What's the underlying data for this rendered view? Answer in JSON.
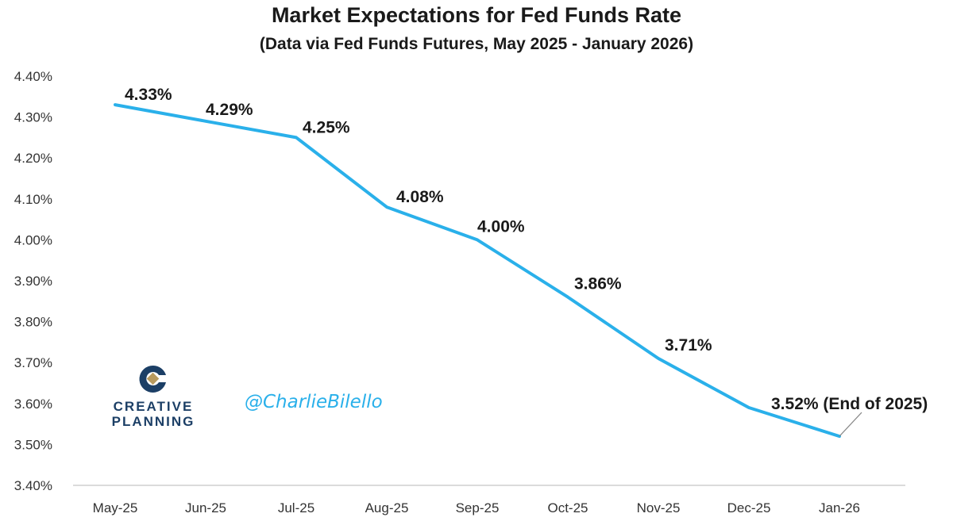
{
  "chart_data": {
    "type": "line",
    "title": "Market Expectations for Fed Funds Rate",
    "subtitle": "(Data via Fed Funds Futures, May 2025 - January 2026)",
    "xlabel": "",
    "ylabel": "",
    "categories": [
      "May-25",
      "Jun-25",
      "Jul-25",
      "Aug-25",
      "Sep-25",
      "Oct-25",
      "Nov-25",
      "Dec-25",
      "Jan-26"
    ],
    "series": [
      {
        "values": [
          4.33,
          4.29,
          4.25,
          4.08,
          4.0,
          3.86,
          3.71,
          3.59,
          3.52
        ],
        "color": "#2ab0ea"
      }
    ],
    "data_labels": [
      "4.33%",
      "4.29%",
      "4.25%",
      "4.08%",
      "4.00%",
      "3.86%",
      "3.71%",
      "",
      "3.52% (End of 2025)"
    ],
    "ylim": [
      3.4,
      4.4
    ],
    "yticks": [
      "3.40%",
      "3.50%",
      "3.60%",
      "3.70%",
      "3.80%",
      "3.90%",
      "4.00%",
      "4.10%",
      "4.20%",
      "4.30%",
      "4.40%"
    ],
    "grid": false,
    "legend": "none"
  },
  "branding": {
    "logo_line1": "CREATIVE",
    "logo_line2": "PLANNING",
    "watermark": "@CharlieBilello"
  }
}
